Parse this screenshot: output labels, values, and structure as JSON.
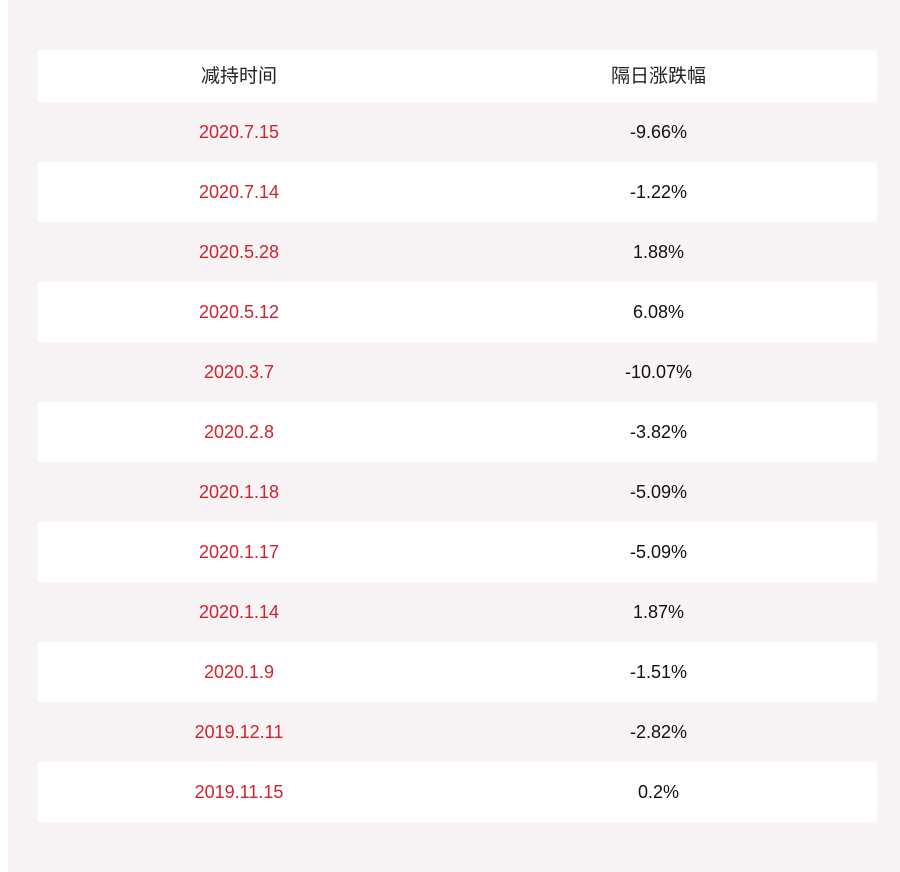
{
  "table": {
    "headers": [
      "减持时间",
      "隔日涨跌幅"
    ],
    "rows": [
      {
        "date": "2020.7.15",
        "change": "-9.66%"
      },
      {
        "date": "2020.7.14",
        "change": "-1.22%"
      },
      {
        "date": "2020.5.28",
        "change": "1.88%"
      },
      {
        "date": "2020.5.12",
        "change": "6.08%"
      },
      {
        "date": "2020.3.7",
        "change": "-10.07%"
      },
      {
        "date": "2020.2.8",
        "change": "-3.82%"
      },
      {
        "date": "2020.1.18",
        "change": "-5.09%"
      },
      {
        "date": "2020.1.17",
        "change": "-5.09%"
      },
      {
        "date": "2020.1.14",
        "change": "1.87%"
      },
      {
        "date": "2020.1.9",
        "change": "-1.51%"
      },
      {
        "date": "2019.12.11",
        "change": "-2.82%"
      },
      {
        "date": "2019.11.15",
        "change": "0.2%"
      }
    ]
  },
  "colors": {
    "date_text": "#d2222d",
    "value_text": "#111111",
    "panel_background": "#f8f4f5",
    "row_alt_background": "#ffffff"
  }
}
